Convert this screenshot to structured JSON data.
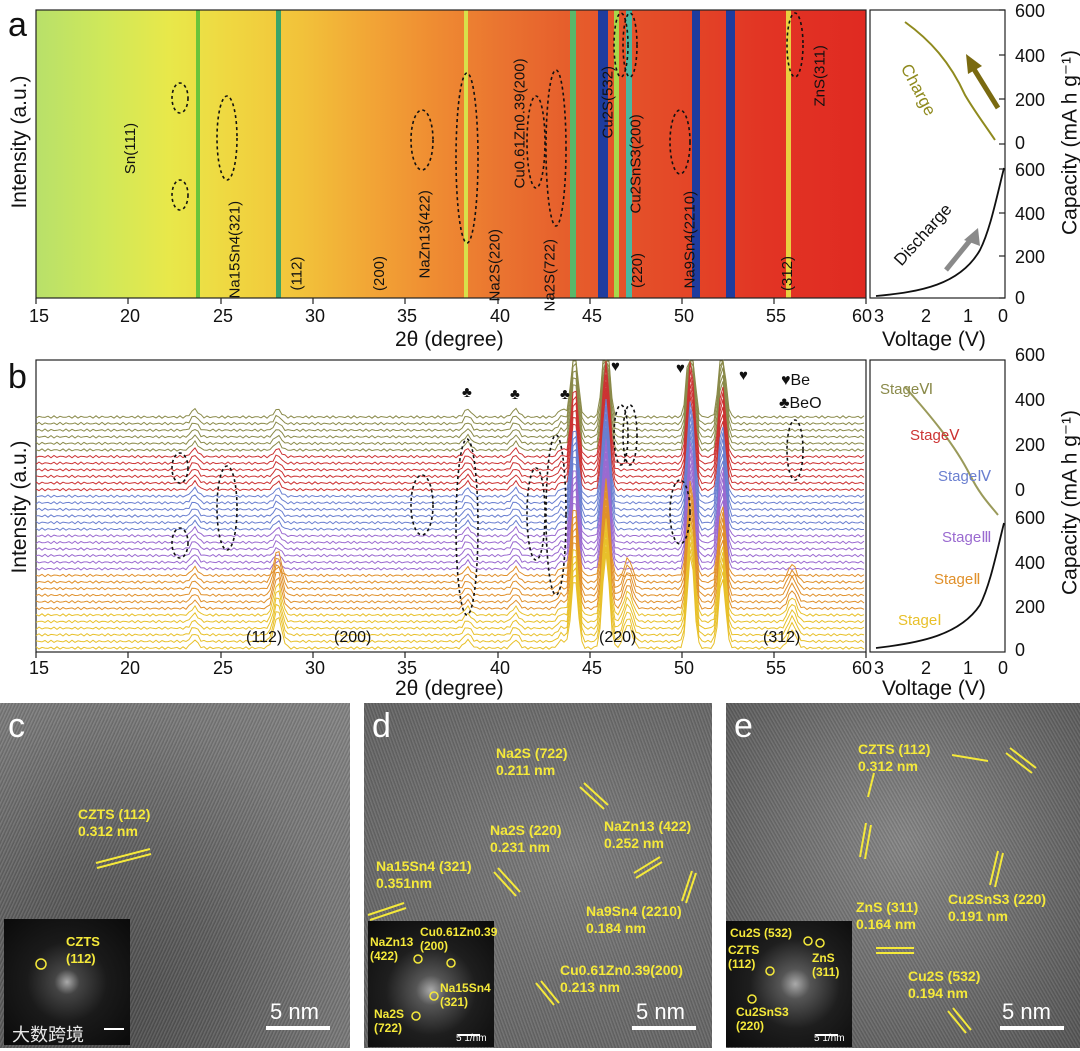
{
  "panel_a": {
    "letter": "a",
    "ylabel": "Intensity (a.u.)",
    "xlabel": "2θ (degree)",
    "xticks": [
      "15",
      "20",
      "25",
      "30",
      "35",
      "40",
      "45",
      "50",
      "55",
      "60"
    ],
    "peak_labels": [
      "Sn(111)",
      "Na15Sn4(321)",
      "(112)",
      "(200)",
      "NaZn13(422)",
      "Na2S(220)",
      "Cu0.61Zn0.39(200)",
      "Na2S(722)",
      "Cu2S(532)",
      "Cu2SnS3(200)",
      "(220)",
      "Na9Sn4(2210)",
      "(312)",
      "ZnS(311)"
    ],
    "side_xlabel": "Voltage (V)",
    "side_xticks": [
      "3",
      "2",
      "1",
      "0"
    ],
    "side_ylabel": "Capacity (mA h g⁻¹)",
    "side_yticks_top": [
      "600",
      "400",
      "200",
      "0"
    ],
    "side_yticks_bottom": [
      "600",
      "400",
      "200",
      "0"
    ],
    "charge_label": "Charge",
    "discharge_label": "Discharge",
    "colors": {
      "charge": "#8f8a1e",
      "discharge": "#111111",
      "arrow": "#8a8a8a"
    }
  },
  "panel_b": {
    "letter": "b",
    "ylabel": "Intensity (a.u.)",
    "xlabel": "2θ (degree)",
    "xticks": [
      "15",
      "20",
      "25",
      "30",
      "35",
      "40",
      "45",
      "50",
      "55",
      "60"
    ],
    "peak_labels": [
      "(112)",
      "(200)",
      "(220)",
      "(312)"
    ],
    "legend": [
      "♥Be",
      "♣BeO"
    ],
    "stages": [
      "StageⅥ",
      "StageⅤ",
      "StageⅣ",
      "StageⅢ",
      "StageⅡ",
      "StageⅠ"
    ],
    "stage_colors": [
      "#8a8a4a",
      "#cc3333",
      "#6a7fd0",
      "#9a6ad0",
      "#e0902a",
      "#e8c02a"
    ],
    "side_xlabel": "Voltage (V)",
    "side_xticks": [
      "3",
      "2",
      "1",
      "0"
    ],
    "side_ylabel": "Capacity (mA h g⁻¹)",
    "side_yticks_top": [
      "600",
      "400",
      "200",
      "0"
    ],
    "side_yticks_bottom": [
      "600",
      "400",
      "200",
      "0"
    ]
  },
  "panel_c": {
    "letter": "c",
    "label_name": "CZTS (112)",
    "label_d": "0.312 nm",
    "fft_label": "CZTS\n(112)",
    "scale": "5 nm"
  },
  "panel_d": {
    "letter": "d",
    "labels": [
      {
        "name": "Na2S (722)",
        "d": "0.211 nm"
      },
      {
        "name": "Na2S (220)",
        "d": "0.231 nm"
      },
      {
        "name": "NaZn13 (422)",
        "d": "0.252 nm"
      },
      {
        "name": "Na15Sn4 (321)",
        "d": "0.351nm"
      },
      {
        "name": "Na9Sn4 (2210)",
        "d": "0.184 nm"
      },
      {
        "name": "Cu0.61Zn0.39(200)",
        "d": "0.213 nm"
      }
    ],
    "fft_labels": [
      "NaZn13\n(422)",
      "Cu0.61Zn0.39\n(200)",
      "Na2S\n(722)",
      "Na15Sn4\n(321)"
    ],
    "fft_scale": "5 1/nm",
    "scale": "5 nm"
  },
  "panel_e": {
    "letter": "e",
    "labels": [
      {
        "name": "CZTS (112)",
        "d": "0.312 nm"
      },
      {
        "name": "ZnS (311)",
        "d": "0.164 nm"
      },
      {
        "name": "Cu2SnS3 (220)",
        "d": "0.191 nm"
      },
      {
        "name": "Cu2S (532)",
        "d": "0.194 nm"
      }
    ],
    "fft_labels": [
      "Cu2S (532)",
      "CZTS\n(112)",
      "ZnS\n(311)",
      "Cu2SnS3\n(220)"
    ],
    "fft_scale": "5 1/nm",
    "scale": "5 nm"
  },
  "watermark": "大数跨境"
}
